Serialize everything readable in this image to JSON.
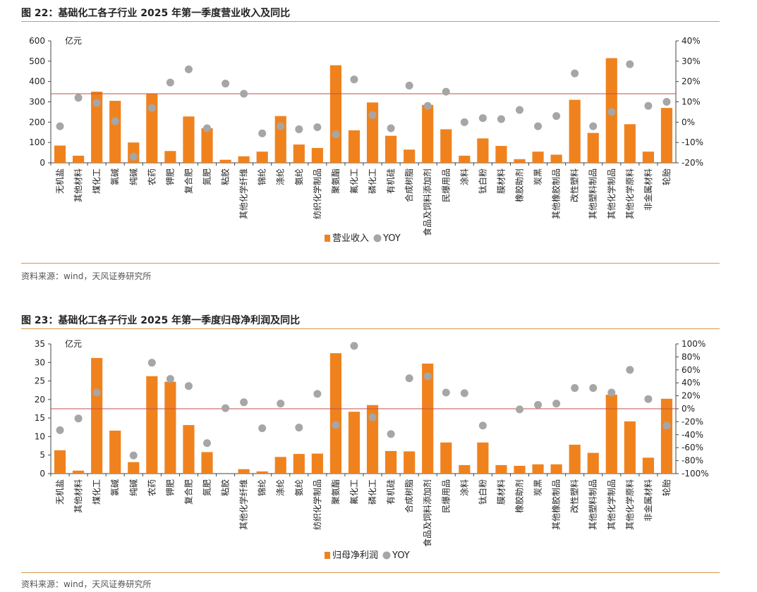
{
  "colors": {
    "bar": "#f0821e",
    "dot": "#a6a6a6",
    "refline": "#c0504d",
    "rule": "#d9974a"
  },
  "figures": [
    {
      "title": "图 22：基础化工各子行业 2025 年第一季度营业收入及同比",
      "source": "资料来源：wind，天风证券研究所"
    },
    {
      "title": "图 23：基础化工各子行业 2025 年第一季度归母净利润及同比",
      "source": "资料来源：wind，天风证券研究所"
    }
  ],
  "chart_data": [
    {
      "type": "bar",
      "title": "",
      "ylabel": "亿元",
      "ylim": [
        0,
        600
      ],
      "yticks": [
        "0",
        "100",
        "200",
        "300",
        "400",
        "500",
        "600"
      ],
      "y2lim": [
        -20,
        40
      ],
      "y2ticks": [
        "-20%",
        "-10%",
        "0%",
        "10%",
        "20%",
        "30%",
        "40%"
      ],
      "reference_line_y2": 14,
      "categories": [
        "无机盐",
        "其他材料",
        "煤化工",
        "氯碱",
        "纯碱",
        "农药",
        "钾肥",
        "复合肥",
        "氮肥",
        "粘胶",
        "其他化学纤维",
        "锦纶",
        "涤纶",
        "氨纶",
        "纺织化学制品",
        "聚氨酯",
        "氟化工",
        "磷化工",
        "有机硅",
        "合成树脂",
        "食品及饲料添加剂",
        "民爆用品",
        "涂料",
        "钛白粉",
        "膜材料",
        "橡胶助剂",
        "炭黑",
        "其他橡胶制品",
        "改性塑料",
        "其他塑料制品",
        "其他化学制品",
        "其他化学原料",
        "非金属材料",
        "轮胎"
      ],
      "series": [
        {
          "name": "营业收入",
          "kind": "bar",
          "axis": "left",
          "values": [
            85,
            35,
            350,
            305,
            100,
            340,
            58,
            228,
            170,
            15,
            32,
            55,
            230,
            90,
            73,
            480,
            160,
            297,
            133,
            65,
            285,
            165,
            35,
            120,
            83,
            18,
            55,
            40,
            310,
            147,
            515,
            190,
            55,
            270
          ]
        },
        {
          "name": "YOY",
          "kind": "dot",
          "axis": "right",
          "values": [
            -2,
            12,
            9.5,
            0.5,
            -17,
            7,
            19.5,
            26,
            -3,
            19,
            14,
            -5.5,
            -2,
            -3.5,
            -2.5,
            -6,
            21,
            3.5,
            -3,
            18,
            8,
            15,
            0,
            2,
            1.5,
            6,
            -2,
            3,
            24,
            -2,
            5,
            28.5,
            8,
            10
          ]
        }
      ],
      "legend": "bottom"
    },
    {
      "type": "bar",
      "title": "",
      "ylabel": "亿元",
      "ylim": [
        0,
        35
      ],
      "yticks": [
        "0",
        "5",
        "10",
        "15",
        "20",
        "25",
        "30",
        "35"
      ],
      "y2lim": [
        -100,
        100
      ],
      "y2ticks": [
        "-100%",
        "-80%",
        "-60%",
        "-40%",
        "-20%",
        "0%",
        "20%",
        "40%",
        "60%",
        "80%",
        "100%"
      ],
      "reference_line_y2": 0,
      "categories": [
        "无机盐",
        "其他材料",
        "煤化工",
        "氯碱",
        "纯碱",
        "农药",
        "钾肥",
        "复合肥",
        "氮肥",
        "粘胶",
        "其他化学纤维",
        "锦纶",
        "涤纶",
        "氨纶",
        "纺织化学制品",
        "聚氨酯",
        "氟化工",
        "磷化工",
        "有机硅",
        "合成树脂",
        "食品及饲料添加剂",
        "民爆用品",
        "涂料",
        "钛白粉",
        "膜材料",
        "橡胶助剂",
        "炭黑",
        "其他橡胶制品",
        "改性塑料",
        "其他塑料制品",
        "其他化学制品",
        "其他化学原料",
        "非金属材料",
        "轮胎"
      ],
      "series": [
        {
          "name": "归母净利润",
          "kind": "bar",
          "axis": "left",
          "values": [
            6.3,
            0.8,
            31.2,
            11.6,
            3.1,
            26.3,
            24.8,
            13.1,
            5.8,
            0,
            1.2,
            0.6,
            4.5,
            5.3,
            5.4,
            32.5,
            16.7,
            18.5,
            6.1,
            6.0,
            29.7,
            8.4,
            2.3,
            8.4,
            2.3,
            2.1,
            2.5,
            2.5,
            7.8,
            5.6,
            21.3,
            14.1,
            4.3,
            20.2
          ]
        },
        {
          "name": "YOY",
          "kind": "dot",
          "axis": "right",
          "values": [
            -33,
            -15,
            25,
            null,
            -72,
            71,
            46,
            35,
            -53,
            1,
            10,
            -30,
            8,
            -29,
            23,
            -25,
            97,
            -13,
            -39,
            47,
            50,
            25,
            24,
            -26,
            null,
            -1,
            6,
            8,
            32,
            32,
            25,
            60,
            15,
            -26
          ]
        }
      ],
      "legend": "bottom"
    }
  ]
}
